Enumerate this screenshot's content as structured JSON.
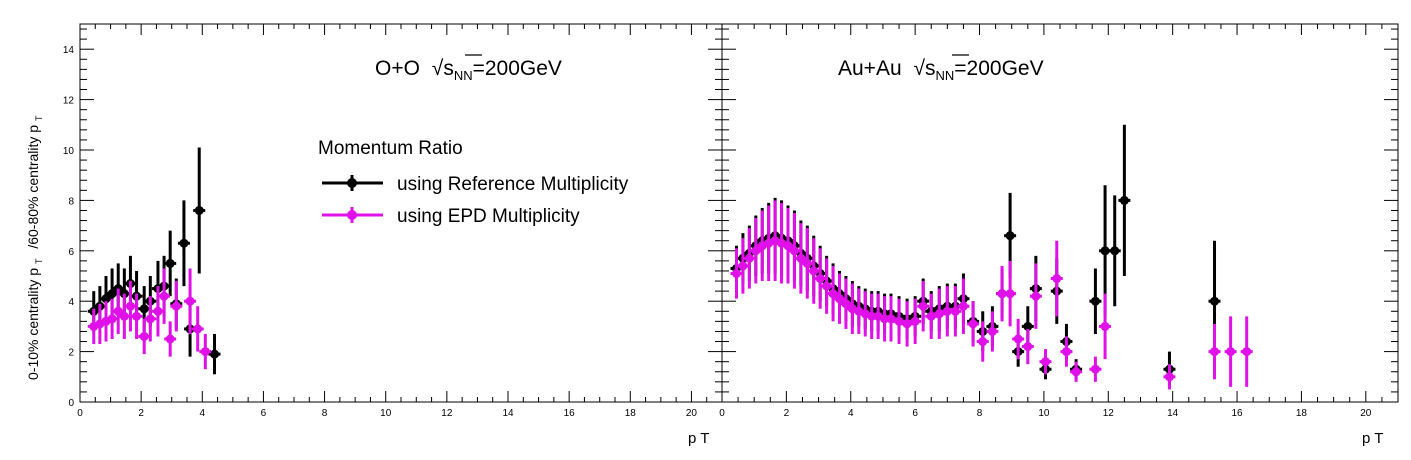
{
  "colors": {
    "ref": "#000000",
    "epd": "#e010e8",
    "frame": "#000000"
  },
  "ylabel": {
    "main1": "0-10% centrality p",
    "sub1": "T",
    "main2": "/60-80% centrality p",
    "sub2": "T"
  },
  "legend": {
    "title": "Momentum Ratio",
    "entries": [
      "using Reference Multiplicity",
      "using EPD Multiplicity"
    ]
  },
  "chart_data": [
    {
      "type": "scatter",
      "annotation": {
        "system": "O+O",
        "sqrt": "s",
        "sub": "NN",
        "energy": "=200GeV"
      },
      "xlabel": "p  T",
      "xlim": [
        0,
        21
      ],
      "ylim": [
        0,
        15
      ],
      "xticks": [
        "0",
        "2",
        "4",
        "6",
        "8",
        "10",
        "12",
        "14",
        "16",
        "18",
        "20"
      ],
      "yticks": [
        "0",
        "2",
        "4",
        "6",
        "8",
        "10",
        "12",
        "14"
      ],
      "legend_entries": [
        "using Reference Multiplicity",
        "using EPD Multiplicity"
      ],
      "series": [
        {
          "name": "using Reference Multiplicity",
          "color": "#000000",
          "points": [
            {
              "x": 0.45,
              "y": 3.6,
              "e": 0.8
            },
            {
              "x": 0.65,
              "y": 3.8,
              "e": 0.8
            },
            {
              "x": 0.85,
              "y": 4.1,
              "e": 0.9
            },
            {
              "x": 1.05,
              "y": 4.3,
              "e": 1.0
            },
            {
              "x": 1.25,
              "y": 4.5,
              "e": 1.0
            },
            {
              "x": 1.45,
              "y": 4.3,
              "e": 1.0
            },
            {
              "x": 1.65,
              "y": 4.7,
              "e": 1.1
            },
            {
              "x": 1.85,
              "y": 4.2,
              "e": 1.0
            },
            {
              "x": 2.1,
              "y": 3.7,
              "e": 0.9
            },
            {
              "x": 2.3,
              "y": 4.0,
              "e": 1.0
            },
            {
              "x": 2.55,
              "y": 4.5,
              "e": 1.1
            },
            {
              "x": 2.75,
              "y": 4.6,
              "e": 1.2
            },
            {
              "x": 2.95,
              "y": 5.5,
              "e": 1.3
            },
            {
              "x": 3.15,
              "y": 3.9,
              "e": 1.0
            },
            {
              "x": 3.4,
              "y": 6.3,
              "e": 1.7
            },
            {
              "x": 3.6,
              "y": 2.9,
              "e": 1.1
            },
            {
              "x": 3.9,
              "y": 7.6,
              "e": 2.5
            },
            {
              "x": 4.4,
              "y": 1.9,
              "e": 0.8
            }
          ]
        },
        {
          "name": "using EPD Multiplicity",
          "color": "#e010e8",
          "points": [
            {
              "x": 0.45,
              "y": 3.0,
              "e": 0.7
            },
            {
              "x": 0.65,
              "y": 3.1,
              "e": 0.8
            },
            {
              "x": 0.85,
              "y": 3.2,
              "e": 0.8
            },
            {
              "x": 1.05,
              "y": 3.3,
              "e": 0.8
            },
            {
              "x": 1.25,
              "y": 3.6,
              "e": 0.9
            },
            {
              "x": 1.45,
              "y": 3.4,
              "e": 0.9
            },
            {
              "x": 1.65,
              "y": 3.8,
              "e": 1.0
            },
            {
              "x": 1.85,
              "y": 3.4,
              "e": 0.9
            },
            {
              "x": 2.1,
              "y": 2.6,
              "e": 0.7
            },
            {
              "x": 2.3,
              "y": 3.3,
              "e": 0.9
            },
            {
              "x": 2.55,
              "y": 3.6,
              "e": 1.0
            },
            {
              "x": 2.75,
              "y": 4.2,
              "e": 1.1
            },
            {
              "x": 2.95,
              "y": 2.5,
              "e": 0.7
            },
            {
              "x": 3.15,
              "y": 3.8,
              "e": 1.0
            },
            {
              "x": 3.6,
              "y": 4.0,
              "e": 1.3
            },
            {
              "x": 3.85,
              "y": 2.9,
              "e": 0.9
            },
            {
              "x": 4.1,
              "y": 2.0,
              "e": 0.7
            }
          ]
        }
      ]
    },
    {
      "type": "scatter",
      "annotation": {
        "system": "Au+Au",
        "sqrt": "s",
        "sub": "NN",
        "energy": "=200GeV"
      },
      "xlabel": "p  T",
      "xlim": [
        0,
        21
      ],
      "ylim": [
        0,
        15
      ],
      "xticks": [
        "0",
        "2",
        "4",
        "6",
        "8",
        "10",
        "12",
        "14",
        "16",
        "18",
        "20"
      ],
      "yticks": [],
      "series": [
        {
          "name": "using Reference Multiplicity",
          "color": "#000000",
          "points": [
            {
              "x": 0.45,
              "y": 5.3,
              "e": 0.9
            },
            {
              "x": 0.65,
              "y": 5.7,
              "e": 1.0
            },
            {
              "x": 0.85,
              "y": 5.9,
              "e": 1.1
            },
            {
              "x": 1.05,
              "y": 6.2,
              "e": 1.2
            },
            {
              "x": 1.25,
              "y": 6.4,
              "e": 1.3
            },
            {
              "x": 1.45,
              "y": 6.5,
              "e": 1.4
            },
            {
              "x": 1.65,
              "y": 6.6,
              "e": 1.5
            },
            {
              "x": 1.85,
              "y": 6.5,
              "e": 1.5
            },
            {
              "x": 2.05,
              "y": 6.4,
              "e": 1.4
            },
            {
              "x": 2.25,
              "y": 6.2,
              "e": 1.4
            },
            {
              "x": 2.45,
              "y": 5.9,
              "e": 1.3
            },
            {
              "x": 2.65,
              "y": 5.7,
              "e": 1.3
            },
            {
              "x": 2.85,
              "y": 5.4,
              "e": 1.2
            },
            {
              "x": 3.05,
              "y": 5.1,
              "e": 1.1
            },
            {
              "x": 3.25,
              "y": 4.8,
              "e": 1.0
            },
            {
              "x": 3.45,
              "y": 4.5,
              "e": 1.0
            },
            {
              "x": 3.65,
              "y": 4.3,
              "e": 0.9
            },
            {
              "x": 3.85,
              "y": 4.1,
              "e": 0.9
            },
            {
              "x": 4.05,
              "y": 3.9,
              "e": 0.9
            },
            {
              "x": 4.25,
              "y": 3.8,
              "e": 0.8
            },
            {
              "x": 4.45,
              "y": 3.7,
              "e": 0.8
            },
            {
              "x": 4.65,
              "y": 3.6,
              "e": 0.8
            },
            {
              "x": 4.85,
              "y": 3.6,
              "e": 0.8
            },
            {
              "x": 5.05,
              "y": 3.5,
              "e": 0.8
            },
            {
              "x": 5.25,
              "y": 3.5,
              "e": 0.8
            },
            {
              "x": 5.5,
              "y": 3.4,
              "e": 0.8
            },
            {
              "x": 5.75,
              "y": 3.3,
              "e": 0.8
            },
            {
              "x": 6.0,
              "y": 3.4,
              "e": 0.8
            },
            {
              "x": 6.25,
              "y": 4.0,
              "e": 0.9
            },
            {
              "x": 6.5,
              "y": 3.6,
              "e": 0.8
            },
            {
              "x": 6.75,
              "y": 3.7,
              "e": 0.9
            },
            {
              "x": 7.0,
              "y": 3.8,
              "e": 0.9
            },
            {
              "x": 7.25,
              "y": 3.8,
              "e": 0.9
            },
            {
              "x": 7.5,
              "y": 4.1,
              "e": 1.0
            },
            {
              "x": 7.8,
              "y": 3.2,
              "e": 0.8
            },
            {
              "x": 8.1,
              "y": 2.8,
              "e": 0.8
            },
            {
              "x": 8.4,
              "y": 3.0,
              "e": 0.8
            },
            {
              "x": 8.7,
              "y": 4.3,
              "e": 1.0
            },
            {
              "x": 8.95,
              "y": 6.6,
              "e": 1.7
            },
            {
              "x": 9.2,
              "y": 2.0,
              "e": 0.6
            },
            {
              "x": 9.5,
              "y": 3.0,
              "e": 0.8
            },
            {
              "x": 9.75,
              "y": 4.5,
              "e": 1.3
            },
            {
              "x": 10.05,
              "y": 1.3,
              "e": 0.4
            },
            {
              "x": 10.4,
              "y": 4.4,
              "e": 1.3
            },
            {
              "x": 10.7,
              "y": 2.4,
              "e": 0.7
            },
            {
              "x": 11.0,
              "y": 1.3,
              "e": 0.4
            },
            {
              "x": 11.6,
              "y": 4.0,
              "e": 1.3
            },
            {
              "x": 11.9,
              "y": 6.0,
              "e": 2.6
            },
            {
              "x": 12.2,
              "y": 6.0,
              "e": 2.2
            },
            {
              "x": 12.5,
              "y": 8.0,
              "e": 3.0
            },
            {
              "x": 13.9,
              "y": 1.3,
              "e": 0.7
            },
            {
              "x": 15.3,
              "y": 4.0,
              "e": 2.4
            }
          ]
        },
        {
          "name": "using EPD Multiplicity",
          "color": "#e010e8",
          "points": [
            {
              "x": 0.45,
              "y": 5.1,
              "e": 1.0
            },
            {
              "x": 0.65,
              "y": 5.4,
              "e": 1.1
            },
            {
              "x": 0.85,
              "y": 5.7,
              "e": 1.2
            },
            {
              "x": 1.05,
              "y": 6.0,
              "e": 1.3
            },
            {
              "x": 1.25,
              "y": 6.2,
              "e": 1.4
            },
            {
              "x": 1.45,
              "y": 6.3,
              "e": 1.5
            },
            {
              "x": 1.65,
              "y": 6.4,
              "e": 1.6
            },
            {
              "x": 1.85,
              "y": 6.3,
              "e": 1.6
            },
            {
              "x": 2.05,
              "y": 6.2,
              "e": 1.5
            },
            {
              "x": 2.25,
              "y": 6.0,
              "e": 1.5
            },
            {
              "x": 2.45,
              "y": 5.7,
              "e": 1.4
            },
            {
              "x": 2.65,
              "y": 5.5,
              "e": 1.4
            },
            {
              "x": 2.85,
              "y": 5.2,
              "e": 1.3
            },
            {
              "x": 3.05,
              "y": 4.9,
              "e": 1.2
            },
            {
              "x": 3.25,
              "y": 4.6,
              "e": 1.1
            },
            {
              "x": 3.45,
              "y": 4.3,
              "e": 1.1
            },
            {
              "x": 3.65,
              "y": 4.1,
              "e": 1.0
            },
            {
              "x": 3.85,
              "y": 3.9,
              "e": 1.0
            },
            {
              "x": 4.05,
              "y": 3.7,
              "e": 1.0
            },
            {
              "x": 4.25,
              "y": 3.6,
              "e": 0.9
            },
            {
              "x": 4.45,
              "y": 3.5,
              "e": 0.9
            },
            {
              "x": 4.65,
              "y": 3.4,
              "e": 0.9
            },
            {
              "x": 4.85,
              "y": 3.4,
              "e": 0.9
            },
            {
              "x": 5.05,
              "y": 3.3,
              "e": 0.9
            },
            {
              "x": 5.25,
              "y": 3.3,
              "e": 0.9
            },
            {
              "x": 5.5,
              "y": 3.2,
              "e": 0.9
            },
            {
              "x": 5.75,
              "y": 3.1,
              "e": 0.9
            },
            {
              "x": 6.0,
              "y": 3.2,
              "e": 0.9
            },
            {
              "x": 6.25,
              "y": 3.8,
              "e": 1.0
            },
            {
              "x": 6.5,
              "y": 3.4,
              "e": 0.9
            },
            {
              "x": 6.75,
              "y": 3.5,
              "e": 1.0
            },
            {
              "x": 7.0,
              "y": 3.6,
              "e": 1.0
            },
            {
              "x": 7.25,
              "y": 3.6,
              "e": 1.0
            },
            {
              "x": 7.5,
              "y": 3.8,
              "e": 1.1
            },
            {
              "x": 7.8,
              "y": 3.1,
              "e": 0.9
            },
            {
              "x": 8.1,
              "y": 2.4,
              "e": 0.8
            },
            {
              "x": 8.4,
              "y": 2.8,
              "e": 0.8
            },
            {
              "x": 8.7,
              "y": 4.3,
              "e": 1.1
            },
            {
              "x": 8.95,
              "y": 4.3,
              "e": 1.3
            },
            {
              "x": 9.2,
              "y": 2.5,
              "e": 0.8
            },
            {
              "x": 9.5,
              "y": 2.2,
              "e": 0.7
            },
            {
              "x": 9.75,
              "y": 4.2,
              "e": 1.3
            },
            {
              "x": 10.05,
              "y": 1.6,
              "e": 0.5
            },
            {
              "x": 10.4,
              "y": 4.9,
              "e": 1.5
            },
            {
              "x": 10.7,
              "y": 2.0,
              "e": 0.6
            },
            {
              "x": 11.0,
              "y": 1.2,
              "e": 0.4
            },
            {
              "x": 11.6,
              "y": 1.3,
              "e": 0.5
            },
            {
              "x": 11.9,
              "y": 3.0,
              "e": 1.3
            },
            {
              "x": 13.9,
              "y": 1.0,
              "e": 0.5
            },
            {
              "x": 15.3,
              "y": 2.0,
              "e": 1.1
            },
            {
              "x": 15.8,
              "y": 2.0,
              "e": 1.4
            },
            {
              "x": 16.3,
              "y": 2.0,
              "e": 1.4
            }
          ]
        }
      ]
    }
  ]
}
